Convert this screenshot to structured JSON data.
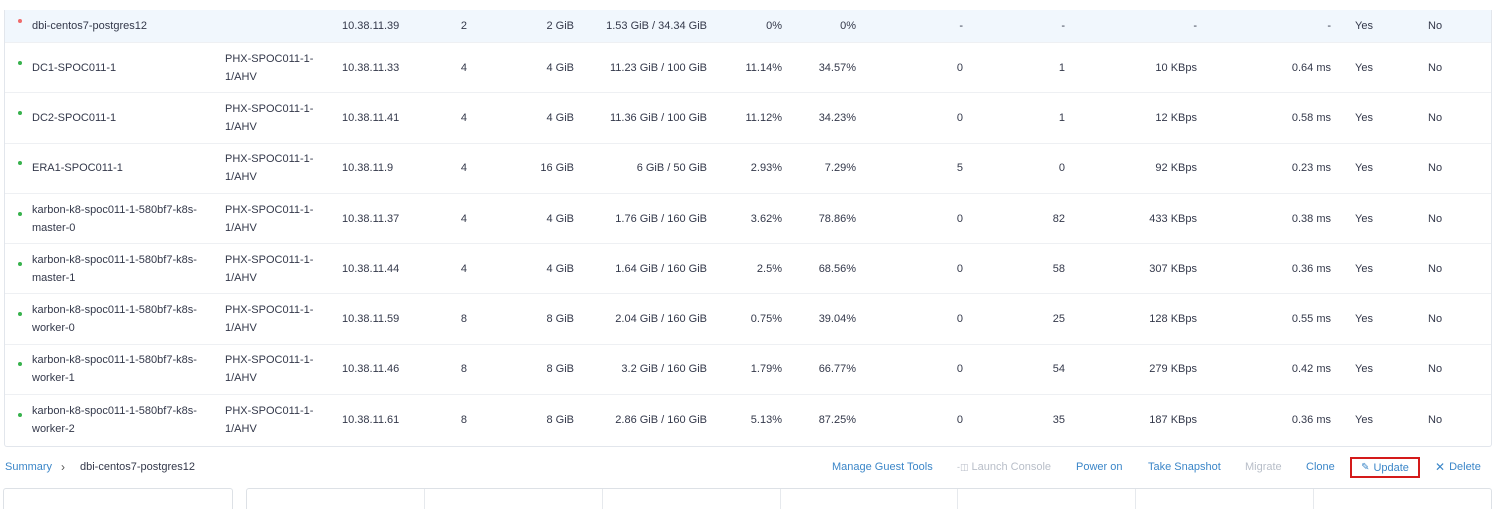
{
  "vms": [
    {
      "status": "red",
      "name": "dbi-centos7-postgres12",
      "host": "",
      "ip": "10.38.11.39",
      "cores": "2",
      "memory": "2 GiB",
      "storage": "1.53 GiB / 34.34 GiB",
      "cpu": "0%",
      "mem_usage": "0%",
      "iops": "-",
      "io_read": "-",
      "bandwidth": "-",
      "latency": "-",
      "ft": "Yes",
      "ha": "No"
    },
    {
      "status": "green",
      "name": "DC1-SPOC011-1",
      "host": "PHX-SPOC011-1-1/AHV",
      "ip": "10.38.11.33",
      "cores": "4",
      "memory": "4 GiB",
      "storage": "11.23 GiB / 100 GiB",
      "cpu": "11.14%",
      "mem_usage": "34.57%",
      "iops": "0",
      "io_read": "1",
      "bandwidth": "10 KBps",
      "latency": "0.64 ms",
      "ft": "Yes",
      "ha": "No"
    },
    {
      "status": "green",
      "name": "DC2-SPOC011-1",
      "host": "PHX-SPOC011-1-1/AHV",
      "ip": "10.38.11.41",
      "cores": "4",
      "memory": "4 GiB",
      "storage": "11.36 GiB / 100 GiB",
      "cpu": "11.12%",
      "mem_usage": "34.23%",
      "iops": "0",
      "io_read": "1",
      "bandwidth": "12 KBps",
      "latency": "0.58 ms",
      "ft": "Yes",
      "ha": "No"
    },
    {
      "status": "green",
      "name": "ERA1-SPOC011-1",
      "host": "PHX-SPOC011-1-1/AHV",
      "ip": "10.38.11.9",
      "cores": "4",
      "memory": "16 GiB",
      "storage": "6 GiB / 50 GiB",
      "cpu": "2.93%",
      "mem_usage": "7.29%",
      "iops": "5",
      "io_read": "0",
      "bandwidth": "92 KBps",
      "latency": "0.23 ms",
      "ft": "Yes",
      "ha": "No"
    },
    {
      "status": "green",
      "name": "karbon-k8-spoc011-1-580bf7-k8s-master-0",
      "host": "PHX-SPOC011-1-1/AHV",
      "ip": "10.38.11.37",
      "cores": "4",
      "memory": "4 GiB",
      "storage": "1.76 GiB / 160 GiB",
      "cpu": "3.62%",
      "mem_usage": "78.86%",
      "iops": "0",
      "io_read": "82",
      "bandwidth": "433 KBps",
      "latency": "0.38 ms",
      "ft": "Yes",
      "ha": "No"
    },
    {
      "status": "green",
      "name": "karbon-k8-spoc011-1-580bf7-k8s-master-1",
      "host": "PHX-SPOC011-1-1/AHV",
      "ip": "10.38.11.44",
      "cores": "4",
      "memory": "4 GiB",
      "storage": "1.64 GiB / 160 GiB",
      "cpu": "2.5%",
      "mem_usage": "68.56%",
      "iops": "0",
      "io_read": "58",
      "bandwidth": "307 KBps",
      "latency": "0.36 ms",
      "ft": "Yes",
      "ha": "No"
    },
    {
      "status": "green",
      "name": "karbon-k8-spoc011-1-580bf7-k8s-worker-0",
      "host": "PHX-SPOC011-1-1/AHV",
      "ip": "10.38.11.59",
      "cores": "8",
      "memory": "8 GiB",
      "storage": "2.04 GiB / 160 GiB",
      "cpu": "0.75%",
      "mem_usage": "39.04%",
      "iops": "0",
      "io_read": "25",
      "bandwidth": "128 KBps",
      "latency": "0.55 ms",
      "ft": "Yes",
      "ha": "No"
    },
    {
      "status": "green",
      "name": "karbon-k8-spoc011-1-580bf7-k8s-worker-1",
      "host": "PHX-SPOC011-1-1/AHV",
      "ip": "10.38.11.46",
      "cores": "8",
      "memory": "8 GiB",
      "storage": "3.2 GiB / 160 GiB",
      "cpu": "1.79%",
      "mem_usage": "66.77%",
      "iops": "0",
      "io_read": "54",
      "bandwidth": "279 KBps",
      "latency": "0.42 ms",
      "ft": "Yes",
      "ha": "No"
    },
    {
      "status": "green",
      "name": "karbon-k8-spoc011-1-580bf7-k8s-worker-2",
      "host": "PHX-SPOC011-1-1/AHV",
      "ip": "10.38.11.61",
      "cores": "8",
      "memory": "8 GiB",
      "storage": "2.86 GiB / 160 GiB",
      "cpu": "5.13%",
      "mem_usage": "87.25%",
      "iops": "0",
      "io_read": "35",
      "bandwidth": "187 KBps",
      "latency": "0.36 ms",
      "ft": "Yes",
      "ha": "No"
    }
  ],
  "breadcrumb": {
    "root": "Summary",
    "separator": "›",
    "current": "dbi-centos7-postgres12"
  },
  "actions": {
    "manage_guest_tools": "Manage Guest Tools",
    "launch_console": "Launch Console",
    "power_on": "Power on",
    "take_snapshot": "Take Snapshot",
    "migrate": "Migrate",
    "clone": "Clone",
    "update": "Update",
    "delete": "Delete"
  },
  "colors": {
    "link": "#3b86c8",
    "disabled": "#b8bec8",
    "status_on": "#37b24d",
    "status_off": "#ef6a6a",
    "highlight_border": "#d41a1a",
    "selected_row": "#f1f7fd"
  }
}
